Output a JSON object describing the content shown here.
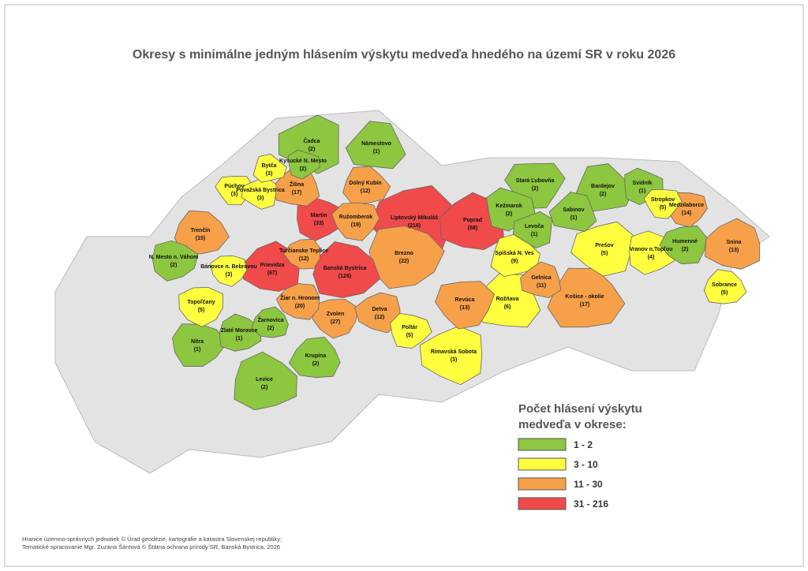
{
  "title": "Okresy s minimálne jedným hlásením výskytu medveďa hnedého na území SR v roku 2026",
  "legend": {
    "title": [
      "Počet hlásení výskytu",
      "medveďa v okrese:"
    ],
    "classes": [
      {
        "label": "1 - 2",
        "min": 1,
        "max": 2,
        "color": "#8dc63f"
      },
      {
        "label": "3 - 10",
        "min": 3,
        "max": 10,
        "color": "#ffff40"
      },
      {
        "label": "11 - 30",
        "min": 11,
        "max": 30,
        "color": "#f7a04a"
      },
      {
        "label": "31 - 216",
        "min": 31,
        "max": 216,
        "color": "#f04a4a"
      }
    ]
  },
  "districts": [
    {
      "name": "Čadca",
      "value": 2,
      "value_label": "(2)"
    },
    {
      "name": "Námestovo",
      "value": 1,
      "value_label": "(1)"
    },
    {
      "name": "Bytča",
      "value": 3,
      "value_label": "(3)"
    },
    {
      "name": "Kysucké N. Mesto",
      "value": 2,
      "value_label": "(2)"
    },
    {
      "name": "Púchov",
      "value": 3,
      "value_label": "(3)"
    },
    {
      "name": "Považská Bystrica",
      "value": 3,
      "value_label": "(3)"
    },
    {
      "name": "Žilina",
      "value": 17,
      "value_label": "(17)"
    },
    {
      "name": "Dolný Kubín",
      "value": 12,
      "value_label": "(12)"
    },
    {
      "name": "Martin",
      "value": 33,
      "value_label": "(33)"
    },
    {
      "name": "Ružomberok",
      "value": 19,
      "value_label": "(19)"
    },
    {
      "name": "Liptovský Mikuláš",
      "value": 216,
      "value_label": "(216)"
    },
    {
      "name": "Poprad",
      "value": 68,
      "value_label": "(68)"
    },
    {
      "name": "Trenčín",
      "value": 15,
      "value_label": "(15)"
    },
    {
      "name": "N. Mesto n. Váhom",
      "value": 2,
      "value_label": "(2)"
    },
    {
      "name": "Bánovce n. Bebravou",
      "value": 3,
      "value_label": "(3)"
    },
    {
      "name": "Turčianske Teplice",
      "value": 12,
      "value_label": "(12)"
    },
    {
      "name": "Prievidza",
      "value": 67,
      "value_label": "(67)"
    },
    {
      "name": "Banská Bystrica",
      "value": 126,
      "value_label": "(126)"
    },
    {
      "name": "Brezno",
      "value": 22,
      "value_label": "(22)"
    },
    {
      "name": "Topoľčany",
      "value": 5,
      "value_label": "(5)"
    },
    {
      "name": "Žiar n. Hronom",
      "value": 20,
      "value_label": "(20)"
    },
    {
      "name": "Žarnovica",
      "value": 2,
      "value_label": "(2)"
    },
    {
      "name": "Zlaté Moravce",
      "value": 1,
      "value_label": "(1)"
    },
    {
      "name": "Nitra",
      "value": 1,
      "value_label": "(1)"
    },
    {
      "name": "Zvolen",
      "value": 27,
      "value_label": "(27)"
    },
    {
      "name": "Detva",
      "value": 12,
      "value_label": "(12)"
    },
    {
      "name": "Krupina",
      "value": 2,
      "value_label": "(2)"
    },
    {
      "name": "Levice",
      "value": 2,
      "value_label": "(2)"
    },
    {
      "name": "Poltár",
      "value": 5,
      "value_label": "(5)"
    },
    {
      "name": "Revúca",
      "value": 13,
      "value_label": "(13)"
    },
    {
      "name": "Rimavská Sobota",
      "value": 3,
      "value_label": "(3)"
    },
    {
      "name": "Rožňava",
      "value": 6,
      "value_label": "(6)"
    },
    {
      "name": "Spišská N. Ves",
      "value": 9,
      "value_label": "(9)"
    },
    {
      "name": "Kežmarok",
      "value": 2,
      "value_label": "(2)"
    },
    {
      "name": "Stará Ľubovňa",
      "value": 2,
      "value_label": "(2)"
    },
    {
      "name": "Levoča",
      "value": 1,
      "value_label": "(1)"
    },
    {
      "name": "Sabinov",
      "value": 1,
      "value_label": "(1)"
    },
    {
      "name": "Bardejov",
      "value": 2,
      "value_label": "(2)"
    },
    {
      "name": "Svidník",
      "value": 1,
      "value_label": "(1)"
    },
    {
      "name": "Stropkov",
      "value": 5,
      "value_label": "(5)"
    },
    {
      "name": "Prešov",
      "value": 5,
      "value_label": "(5)"
    },
    {
      "name": "Gelnica",
      "value": 11,
      "value_label": "(11)"
    },
    {
      "name": "Košice - okolie",
      "value": 17,
      "value_label": "(17)"
    },
    {
      "name": "Vranov n.Topľou",
      "value": 4,
      "value_label": "(4)"
    },
    {
      "name": "Medzilaborce",
      "value": 14,
      "value_label": "(14)"
    },
    {
      "name": "Humenné",
      "value": 2,
      "value_label": "(2)"
    },
    {
      "name": "Snina",
      "value": 13,
      "value_label": "(13)"
    },
    {
      "name": "Sobrance",
      "value": 5,
      "value_label": "(5)"
    }
  ],
  "footer": [
    "Hranice územno-správnych jednotiek © Úrad geodézie, kartografie a katastra Slovenskej republiky;",
    "Tematické spracovanie Mgr. Zuzana Šántová © Štátna ochrana prírody SR, Banská Bystrica, 2026"
  ]
}
